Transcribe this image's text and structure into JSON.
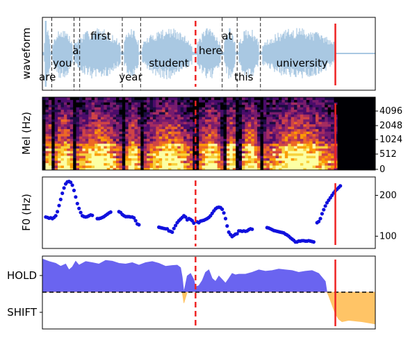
{
  "figure": {
    "duration_s": 10,
    "marker_dashed_s": 4.6,
    "marker_solid_s": 8.8,
    "colors": {
      "waveform": "#a9c8e2",
      "word_boundary": "#222222",
      "marker": "#ee2222",
      "f0_points": "#1010dd",
      "hold_fill": "#6a64f0",
      "shift_fill": "#ffc466",
      "threshold": "#000000"
    }
  },
  "chart_data": [
    {
      "type": "line",
      "name": "waveform-panel",
      "ylabel": "waveform",
      "words": [
        {
          "text": "are",
          "t": 0.15,
          "row": 3
        },
        {
          "text": "you",
          "t": 0.6,
          "row": 2
        },
        {
          "text": "a",
          "t": 1.0,
          "row": 1
        },
        {
          "text": "first",
          "t": 1.75,
          "row": 0
        },
        {
          "text": "year",
          "t": 2.65,
          "row": 3
        },
        {
          "text": "student",
          "t": 3.8,
          "row": 2
        },
        {
          "text": "here",
          "t": 5.05,
          "row": 1
        },
        {
          "text": "at",
          "t": 5.55,
          "row": 0
        },
        {
          "text": "this",
          "t": 6.05,
          "row": 3
        },
        {
          "text": "university",
          "t": 7.8,
          "row": 2
        }
      ],
      "word_boundaries": [
        0.28,
        0.95,
        1.12,
        2.4,
        2.95,
        5.4,
        5.85,
        6.55
      ]
    },
    {
      "type": "heatmap",
      "name": "mel-panel",
      "ylabel": "Mel (Hz)",
      "yticks": [
        "0",
        "512",
        "1024",
        "2048",
        "4096"
      ],
      "active_until_s": 8.8
    },
    {
      "type": "scatter",
      "name": "f0-panel",
      "ylabel": "F0 (Hz)",
      "ylim": [
        70,
        245
      ],
      "yticks": [
        "100",
        "200"
      ],
      "segments": [
        {
          "x": [
            0.1,
            0.15,
            0.2,
            0.25,
            0.3,
            0.35,
            0.4,
            0.45,
            0.5,
            0.55,
            0.6,
            0.65,
            0.7,
            0.75,
            0.8,
            0.85,
            0.9,
            0.95,
            1.0,
            1.05,
            1.1,
            1.15,
            1.2,
            1.25,
            1.3,
            1.35,
            1.4,
            1.45,
            1.5
          ],
          "y": [
            147,
            146,
            144,
            145,
            143,
            146,
            150,
            160,
            175,
            190,
            205,
            218,
            228,
            233,
            234,
            232,
            225,
            212,
            196,
            180,
            168,
            158,
            150,
            148,
            147,
            148,
            150,
            152,
            151
          ]
        },
        {
          "x": [
            1.65,
            1.7,
            1.75,
            1.8,
            1.85,
            1.9,
            1.95,
            2.0,
            2.05
          ],
          "y": [
            143,
            143,
            144,
            146,
            148,
            151,
            154,
            157,
            159
          ]
        },
        {
          "x": [
            2.3,
            2.35,
            2.4,
            2.45,
            2.5,
            2.55,
            2.6,
            2.65,
            2.7,
            2.75,
            2.8,
            2.85,
            2.9
          ],
          "y": [
            160,
            158,
            153,
            150,
            148,
            148,
            148,
            147,
            147,
            145,
            138,
            130,
            128
          ]
        },
        {
          "x": [
            3.5,
            3.55,
            3.6,
            3.65,
            3.7,
            3.75,
            3.8,
            3.85,
            3.9,
            3.95,
            4.0,
            4.05,
            4.1,
            4.15,
            4.2,
            4.25,
            4.3,
            4.35,
            4.4,
            4.45,
            4.5,
            4.55
          ],
          "y": [
            122,
            121,
            120,
            119,
            118,
            118,
            113,
            112,
            110,
            119,
            126,
            133,
            138,
            142,
            146,
            150,
            147,
            140,
            143,
            141,
            138,
            132
          ]
        },
        {
          "x": [
            4.65,
            4.7,
            4.75,
            4.8,
            4.85,
            4.9,
            4.95,
            5.0,
            5.05,
            5.1,
            5.15,
            5.2,
            5.25,
            5.3,
            5.35,
            5.4,
            5.45,
            5.5,
            5.55,
            5.6,
            5.65,
            5.7,
            5.75,
            5.8,
            5.85
          ],
          "y": [
            135,
            133,
            137,
            138,
            139,
            141,
            143,
            146,
            150,
            156,
            162,
            167,
            170,
            171,
            170,
            166,
            157,
            143,
            125,
            110,
            104,
            99,
            102,
            105,
            106
          ]
        },
        {
          "x": [
            5.9,
            5.95,
            6.0,
            6.05,
            6.1,
            6.15,
            6.2,
            6.25,
            6.3
          ],
          "y": [
            113,
            113,
            112,
            113,
            112,
            113,
            116,
            118,
            117
          ]
        },
        {
          "x": [
            6.75,
            6.8,
            6.85,
            6.9,
            6.95,
            7.0,
            7.05,
            7.1,
            7.15,
            7.2,
            7.25,
            7.3,
            7.35,
            7.4,
            7.45,
            7.5,
            7.55,
            7.6,
            7.65,
            7.7,
            7.75,
            7.8,
            7.85,
            7.9,
            7.95,
            8.0,
            8.05,
            8.1,
            8.15
          ],
          "y": [
            121,
            120,
            118,
            116,
            114,
            113,
            112,
            111,
            110,
            109,
            108,
            105,
            103,
            100,
            96,
            93,
            90,
            86,
            86,
            88,
            88,
            89,
            89,
            88,
            88,
            89,
            88,
            87,
            86
          ]
        },
        {
          "x": [
            8.25,
            8.3,
            8.35,
            8.4,
            8.45,
            8.5,
            8.55,
            8.6,
            8.65,
            8.7,
            8.75,
            8.8,
            8.85,
            8.9,
            8.95
          ],
          "y": [
            133,
            136,
            143,
            155,
            165,
            174,
            182,
            188,
            194,
            200,
            206,
            211,
            215,
            219,
            223
          ]
        }
      ]
    },
    {
      "type": "area",
      "name": "turn-panel",
      "yticks": [
        "HOLD",
        "SHIFT"
      ],
      "ylim": [
        -1,
        1
      ],
      "threshold": 0,
      "x": [
        0,
        0.2,
        0.4,
        0.55,
        0.7,
        0.8,
        0.9,
        1.0,
        1.1,
        1.3,
        1.5,
        1.7,
        1.9,
        2.1,
        2.3,
        2.5,
        2.7,
        2.9,
        3.1,
        3.3,
        3.5,
        3.7,
        3.9,
        4.05,
        4.15,
        4.2,
        4.25,
        4.35,
        4.45,
        4.55,
        4.6,
        4.7,
        4.8,
        4.9,
        5.0,
        5.1,
        5.2,
        5.3,
        5.4,
        5.5,
        5.6,
        5.7,
        5.8,
        5.9,
        6.1,
        6.3,
        6.5,
        6.7,
        6.9,
        7.1,
        7.3,
        7.5,
        7.7,
        7.9,
        8.1,
        8.3,
        8.5,
        8.55,
        8.6,
        8.7,
        8.8,
        8.9,
        9.0,
        9.2,
        9.4,
        9.6,
        9.8,
        10.0
      ],
      "values": [
        0.92,
        0.85,
        0.8,
        0.72,
        0.78,
        0.62,
        0.7,
        0.86,
        0.75,
        0.85,
        0.82,
        0.78,
        0.88,
        0.86,
        0.8,
        0.78,
        0.82,
        0.75,
        0.82,
        0.85,
        0.8,
        0.72,
        0.74,
        0.75,
        0.68,
        0.42,
        -0.3,
        0.45,
        0.52,
        0.35,
        0.15,
        0.18,
        0.32,
        0.55,
        0.62,
        0.38,
        0.3,
        0.45,
        0.35,
        0.25,
        0.38,
        0.52,
        0.48,
        0.5,
        0.5,
        0.55,
        0.62,
        0.58,
        0.6,
        0.64,
        0.62,
        0.6,
        0.55,
        0.58,
        0.6,
        0.52,
        0.3,
        0.0,
        -0.1,
        -0.35,
        -0.6,
        -0.75,
        -0.82,
        -0.78,
        -0.8,
        -0.82,
        -0.85,
        -0.88
      ]
    }
  ]
}
